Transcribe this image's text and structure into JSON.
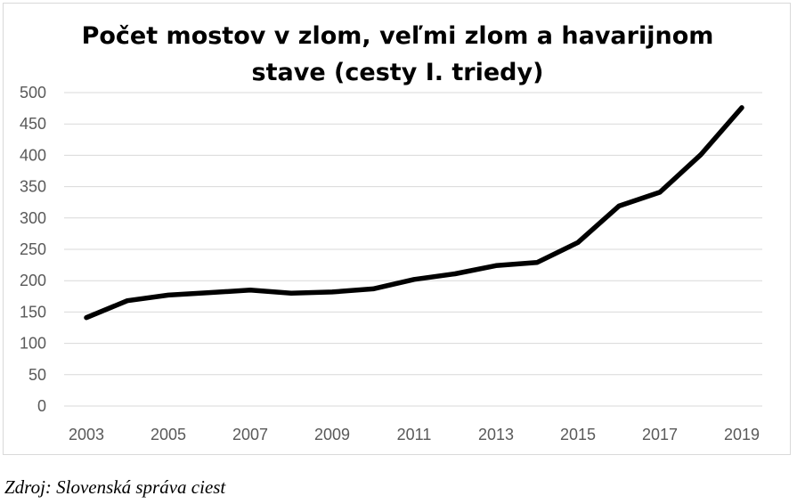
{
  "chart_data": {
    "type": "line",
    "title_lines": [
      "Počet mostov v zlom, veľmi zlom a havarijnom",
      "stave (cesty I. triedy)"
    ],
    "xlabel": "",
    "ylabel": "",
    "x": [
      2003,
      2004,
      2005,
      2006,
      2007,
      2008,
      2009,
      2010,
      2011,
      2012,
      2013,
      2014,
      2015,
      2016,
      2017,
      2018,
      2019
    ],
    "x_tick_labels": [
      "2003",
      "2005",
      "2007",
      "2009",
      "2011",
      "2013",
      "2015",
      "2017",
      "2019"
    ],
    "y_tick_labels": [
      "500",
      "450",
      "400",
      "350",
      "300",
      "250",
      "200",
      "150",
      "100",
      "50",
      "0"
    ],
    "series": [
      {
        "values": [
          141,
          168,
          177,
          181,
          185,
          180,
          182,
          187,
          202,
          211,
          224,
          229,
          261,
          319,
          341,
          401,
          476
        ]
      }
    ],
    "ylim": [
      0,
      500
    ],
    "grid": true,
    "legend": "none",
    "colors": {
      "line": "#000000",
      "grid": "#d9d9d9",
      "tick_text": "#595959"
    }
  },
  "source": "Zdroj: Slovenská správa ciest"
}
